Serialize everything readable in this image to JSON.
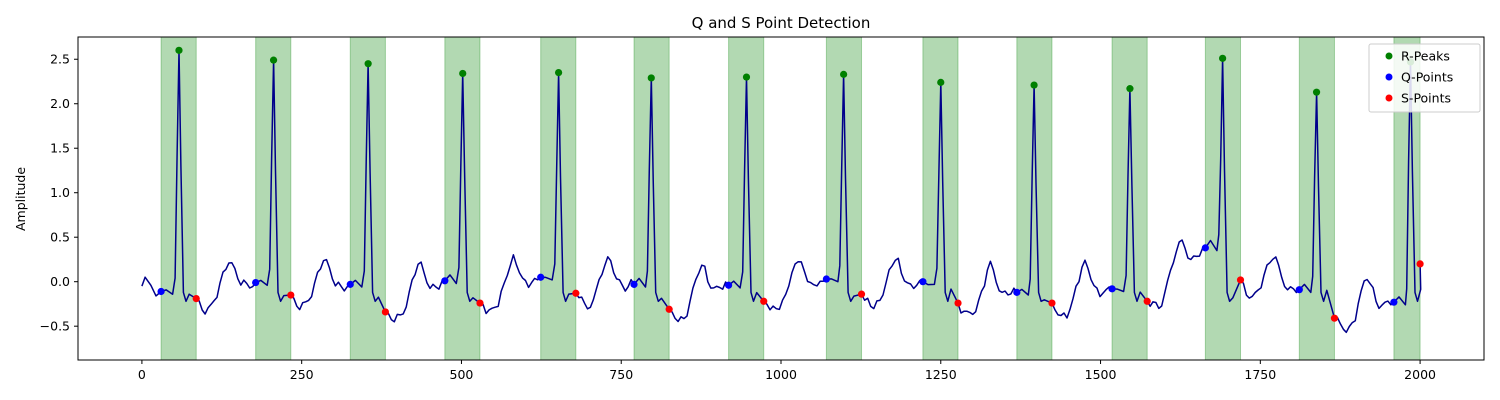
{
  "chart_data": {
    "type": "line",
    "title": "Q and S Point Detection",
    "xlabel": "",
    "ylabel": "Amplitude",
    "xlim": [
      -100,
      2100
    ],
    "ylim": [
      -0.88,
      2.75
    ],
    "x_ticks": [
      0,
      250,
      500,
      750,
      1000,
      1250,
      1500,
      1750,
      2000
    ],
    "y_ticks": [
      -0.5,
      0.0,
      0.5,
      1.0,
      1.5,
      2.0,
      2.5
    ],
    "x_tick_labels": [
      "0",
      "250",
      "500",
      "750",
      "1000",
      "1250",
      "1500",
      "1750",
      "2000"
    ],
    "y_tick_labels": [
      "−0.5",
      "0.0",
      "0.5",
      "1.0",
      "1.5",
      "2.0",
      "2.5"
    ],
    "grid": false,
    "legend_position": "top-right",
    "colors": {
      "signal": "#00008b",
      "r_peaks": "#008000",
      "q_points": "#0000ff",
      "s_points": "#ff0000",
      "qrs_span": "#008000"
    },
    "legend": [
      {
        "label": "R-Peaks",
        "color": "#008000"
      },
      {
        "label": "Q-Points",
        "color": "#0000ff"
      },
      {
        "label": "S-Points",
        "color": "#ff0000"
      }
    ],
    "qrs_spans": [
      [
        30,
        85
      ],
      [
        178,
        233
      ],
      [
        326,
        381
      ],
      [
        474,
        529
      ],
      [
        624,
        679
      ],
      [
        770,
        825
      ],
      [
        918,
        973
      ],
      [
        1071,
        1126
      ],
      [
        1222,
        1277
      ],
      [
        1369,
        1424
      ],
      [
        1518,
        1573
      ],
      [
        1664,
        1719
      ],
      [
        1811,
        1866
      ],
      [
        1959,
        2000
      ]
    ],
    "series": [
      {
        "name": "R-Peaks",
        "x": [
          58,
          206,
          354,
          502,
          652,
          797,
          946,
          1098,
          1250,
          1396,
          1546,
          1691,
          1838,
          1985
        ],
        "y": [
          2.6,
          2.49,
          2.45,
          2.34,
          2.35,
          2.29,
          2.3,
          2.33,
          2.24,
          2.21,
          2.17,
          2.51,
          2.13,
          2.47
        ]
      },
      {
        "name": "Q-Points",
        "x": [
          30,
          178,
          326,
          474,
          624,
          770,
          918,
          1071,
          1222,
          1369,
          1518,
          1664,
          1811,
          1959
        ],
        "y": [
          -0.11,
          -0.01,
          -0.03,
          0.01,
          0.05,
          -0.03,
          -0.04,
          0.03,
          0.0,
          -0.12,
          -0.08,
          0.38,
          -0.09,
          -0.23
        ]
      },
      {
        "name": "S-Points",
        "x": [
          85,
          233,
          381,
          529,
          679,
          825,
          973,
          1126,
          1277,
          1424,
          1573,
          1719,
          1866,
          2000
        ],
        "y": [
          -0.19,
          -0.15,
          -0.34,
          -0.24,
          -0.13,
          -0.31,
          -0.22,
          -0.14,
          -0.24,
          -0.24,
          -0.22,
          0.02,
          -0.41,
          0.2
        ]
      }
    ]
  }
}
